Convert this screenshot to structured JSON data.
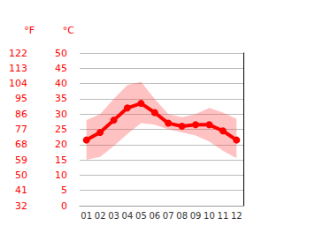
{
  "chart_data": {
    "type": "line",
    "categories": [
      "01",
      "02",
      "03",
      "04",
      "05",
      "06",
      "07",
      "08",
      "09",
      "10",
      "11",
      "12"
    ],
    "values": [
      21.5,
      24,
      28,
      32,
      33.5,
      30.5,
      27,
      26,
      26.5,
      26.5,
      24.5,
      21.5
    ],
    "lower": [
      15,
      16,
      19.5,
      23.5,
      27,
      26.5,
      25,
      24,
      23,
      21,
      18,
      15.5
    ],
    "upper": [
      28,
      30,
      35,
      39.5,
      40.5,
      35,
      30,
      29,
      30,
      32,
      30.5,
      28.5
    ],
    "color": "#ff0000",
    "marker": "circle",
    "y_label": "°C",
    "y2_label": "°F",
    "ylim": [
      0,
      50
    ],
    "yticks": [
      0,
      5,
      10,
      15,
      20,
      25,
      30,
      35,
      40,
      45,
      50
    ],
    "y2lim": [
      32,
      122
    ],
    "y2ticks": [
      32,
      41,
      50,
      59,
      68,
      77,
      86,
      95,
      104,
      113,
      122
    ],
    "grid": true
  }
}
